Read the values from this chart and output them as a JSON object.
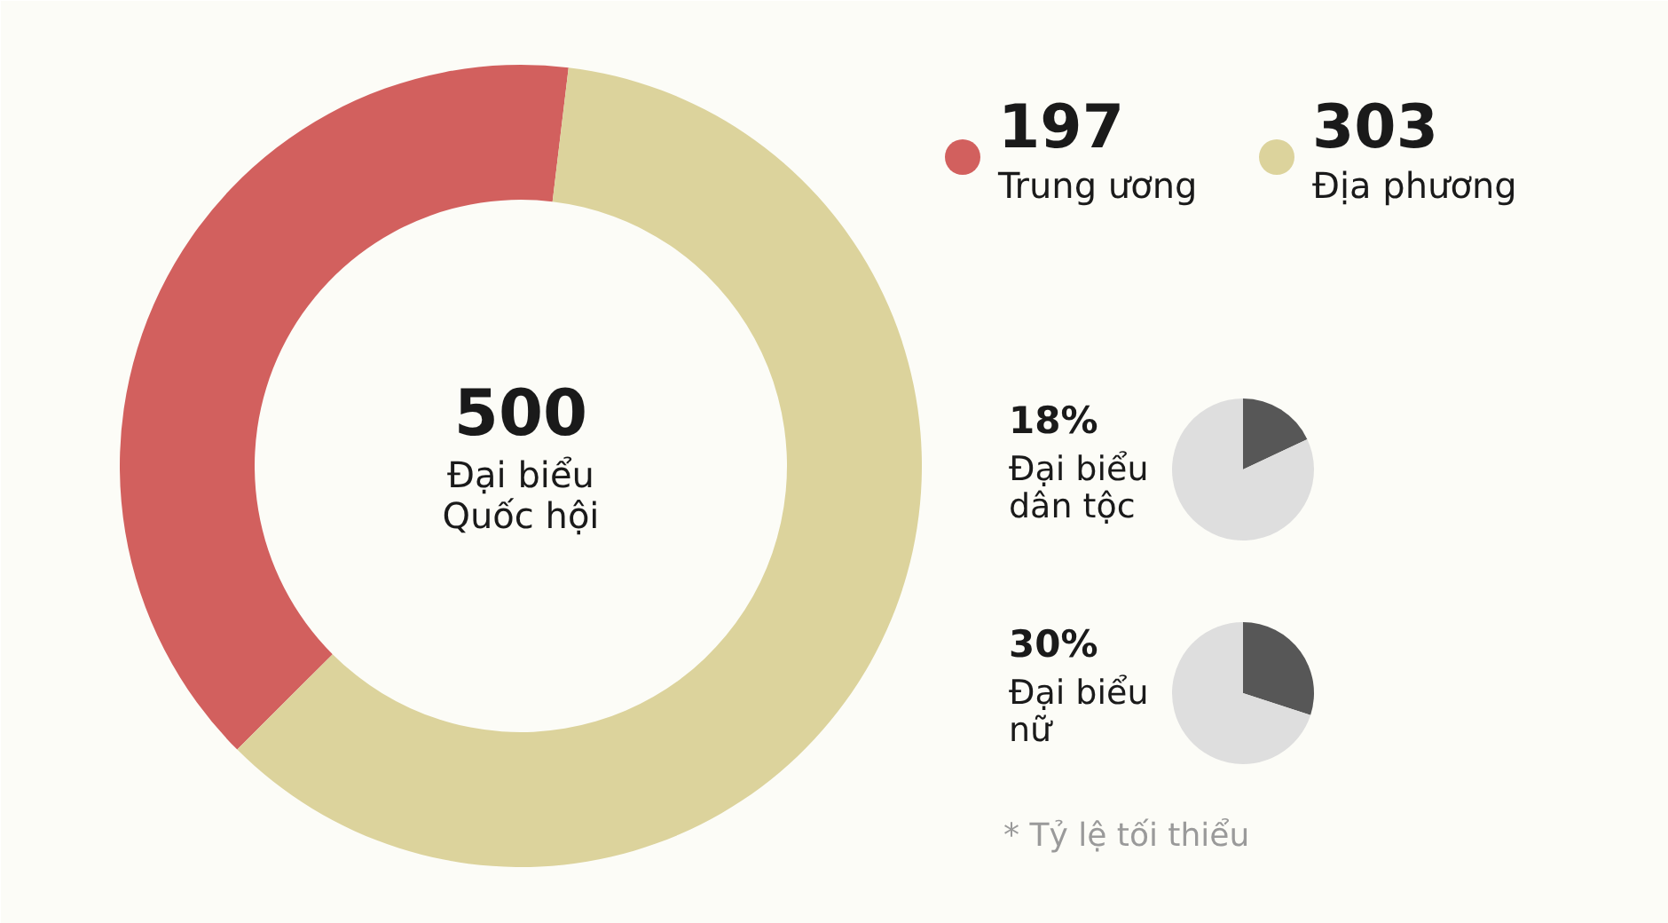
{
  "chart_data": [
    {
      "type": "donut",
      "categories": [
        "Trung ương",
        "Địa phương"
      ],
      "values": [
        197,
        303
      ],
      "colors": [
        "#d2605e",
        "#dcd39c"
      ],
      "data_labels": true,
      "legend": "right",
      "annotations": [
        "500",
        "Đại biểu Quốc hội"
      ]
    },
    {
      "type": "pie",
      "title": "18%",
      "subtitle": "Đại biểu dân tộc",
      "categories": [
        null,
        null
      ],
      "values": [
        18,
        82
      ],
      "colors": [
        "#575757",
        "#dedede"
      ]
    },
    {
      "type": "pie",
      "title": "30%",
      "subtitle": "Đại biểu nữ",
      "categories": [
        null,
        null
      ],
      "values": [
        30,
        70
      ],
      "colors": [
        "#575757",
        "#dedede"
      ],
      "annotations": [
        "* Tỷ lệ tối thiểu"
      ]
    }
  ]
}
